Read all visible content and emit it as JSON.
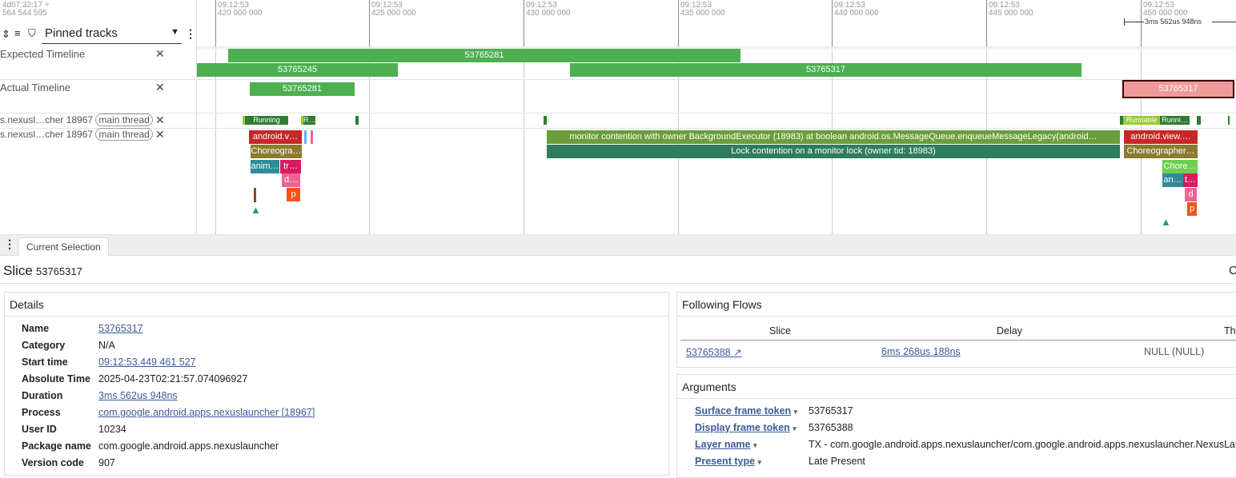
{
  "header": {
    "trace_offset_line1": "4d07:32:17  +",
    "trace_offset_line2": "564 544 595",
    "track_filter": "Pinned tracks",
    "ticks": [
      {
        "time": "09:12:53",
        "ns": "420 000 000"
      },
      {
        "time": "09:12:53",
        "ns": "425 000 000"
      },
      {
        "time": "09:12:53",
        "ns": "430 000 000"
      },
      {
        "time": "09:12:53",
        "ns": "435 000 000"
      },
      {
        "time": "09:12:53",
        "ns": "440 000 000"
      },
      {
        "time": "09:12:53",
        "ns": "445 000 000"
      },
      {
        "time": "09:12:53",
        "ns": "450 000 000"
      }
    ],
    "selection_duration": "3ms 562us 948ns"
  },
  "tracks": {
    "expected": {
      "name": "Expected Timeline",
      "slices": [
        "53765281",
        "53765245",
        "53765317"
      ]
    },
    "actual": {
      "name": "Actual Timeline",
      "slices": [
        "53765281",
        "53765317"
      ]
    },
    "thread_state": {
      "name": "s.nexusl…cher 18967",
      "tag": "main thread",
      "states": [
        "Running",
        "R…",
        "Runnable",
        "Runni…"
      ]
    },
    "thread": {
      "name": "s.nexusl…cher 18967",
      "tag": "main thread",
      "slices": [
        "android.v…",
        "Choreogra…",
        "anim…",
        "tr…",
        "d…",
        "p",
        "monitor contention with owner BackgroundExecutor (18983) at boolean android.os.MessageQueue.enqueueMessageLegacy(android…",
        "Lock contention on a monitor lock (owner tid: 18983)",
        "android.view.…",
        "Choreographer…",
        "Chore…",
        "an…",
        "t…",
        "d",
        "p"
      ]
    }
  },
  "bottom": {
    "tab": "Current Selection",
    "title": "Slice",
    "title_id": "53765317",
    "right_cut": "C",
    "details": {
      "title": "Details",
      "rows": [
        {
          "k": "Name",
          "v": "53765317",
          "link": true
        },
        {
          "k": "Category",
          "v": "N/A"
        },
        {
          "k": "Start time",
          "v": "09:12:53.449 461 527",
          "link": true
        },
        {
          "k": "Absolute Time",
          "v": "2025-04-23T02:21:57.074096927"
        },
        {
          "k": "Duration",
          "v": "3ms 562us 948ns",
          "link": true
        },
        {
          "k": "Process",
          "v": "com.google.android.apps.nexuslauncher [18967]",
          "link": true
        },
        {
          "k": "User ID",
          "v": "10234"
        },
        {
          "k": "Package name",
          "v": "com.google.android.apps.nexuslauncher"
        },
        {
          "k": "Version code",
          "v": "907"
        }
      ]
    },
    "flows": {
      "title": "Following Flows",
      "columns": [
        "Slice",
        "Delay",
        "Thr"
      ],
      "row": {
        "slice": "53765388 ↗",
        "delay": "6ms 268us 188ns",
        "thread": "NULL (NULL)"
      }
    },
    "args": {
      "title": "Arguments",
      "rows": [
        {
          "k": "Surface frame token",
          "v": "53765317"
        },
        {
          "k": "Display frame token",
          "v": "53765388"
        },
        {
          "k": "Layer name",
          "v": "TX - com.google.android.apps.nexuslauncher/com.google.android.apps.nexuslauncher.NexusLauncherActivity"
        },
        {
          "k": "Present type",
          "v": "Late Present"
        }
      ]
    }
  }
}
